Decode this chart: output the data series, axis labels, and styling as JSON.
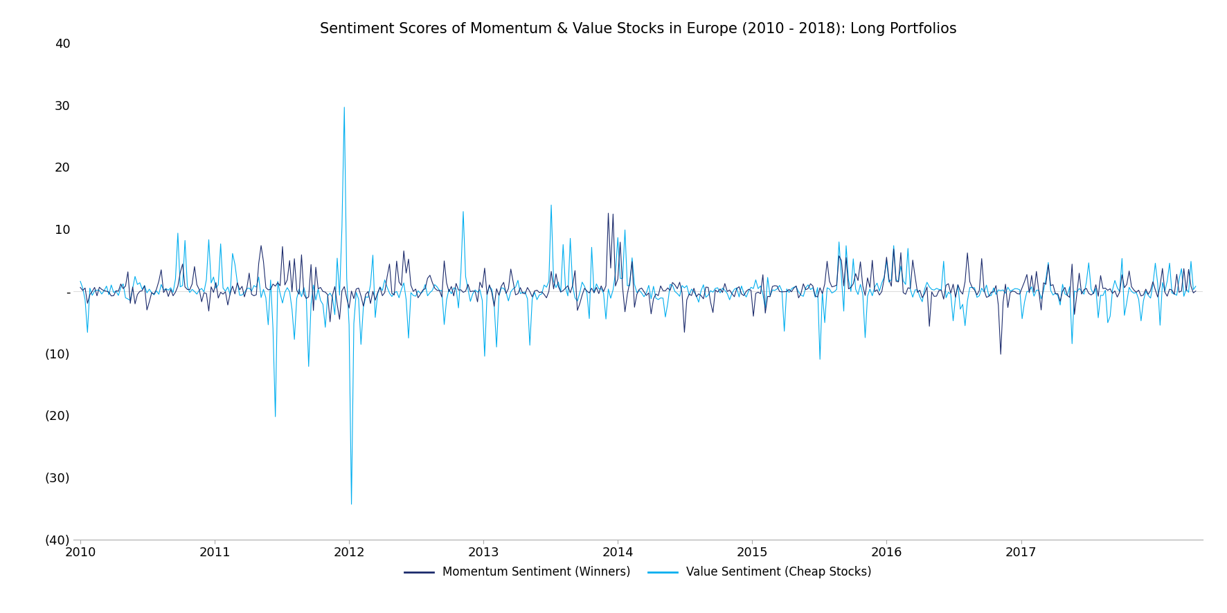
{
  "title": "Sentiment Scores of Momentum & Value Stocks in Europe (2010 - 2018): Long Portfolios",
  "title_fontsize": 15,
  "xlabel": "",
  "ylabel": "",
  "xlim": [
    2009.95,
    2018.35
  ],
  "ylim": [
    -40,
    40
  ],
  "yticks": [
    -40,
    -30,
    -20,
    -10,
    0,
    10,
    20,
    30,
    40
  ],
  "ytick_labels": [
    "(40)",
    "(30)",
    "(20)",
    "(10)",
    "-",
    "10",
    "20",
    "30",
    "40"
  ],
  "xticks": [
    2010,
    2011,
    2012,
    2013,
    2014,
    2015,
    2016,
    2017
  ],
  "momentum_color": "#1B2A6B",
  "value_color": "#00AEEF",
  "momentum_label": "Momentum Sentiment (Winners)",
  "value_label": "Value Sentiment (Cheap Stocks)",
  "linewidth_momentum": 0.8,
  "linewidth_value": 0.8,
  "background_color": "#FFFFFF",
  "legend_fontsize": 12,
  "tick_fontsize": 13
}
